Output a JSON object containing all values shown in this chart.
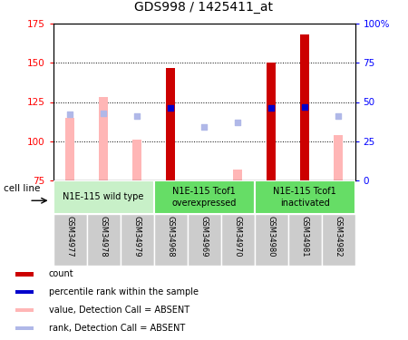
{
  "title": "GDS998 / 1425411_at",
  "samples": [
    "GSM34977",
    "GSM34978",
    "GSM34979",
    "GSM34968",
    "GSM34969",
    "GSM34970",
    "GSM34980",
    "GSM34981",
    "GSM34982"
  ],
  "count_values": [
    null,
    null,
    null,
    147,
    null,
    null,
    150,
    168,
    null
  ],
  "count_color": "#cc0000",
  "value_absent": [
    115,
    128,
    101,
    null,
    null,
    82,
    null,
    null,
    104
  ],
  "value_absent_color": "#ffb6b6",
  "rank_absent": [
    117,
    118,
    116,
    null,
    109,
    112,
    null,
    null,
    116
  ],
  "rank_absent_color": "#b0b8e8",
  "percentile_present": [
    null,
    null,
    null,
    121,
    null,
    null,
    121,
    122,
    null
  ],
  "percentile_color": "#0000cc",
  "ylim_left": [
    75,
    175
  ],
  "ylim_right": [
    0,
    100
  ],
  "yticks_left": [
    75,
    100,
    125,
    150,
    175
  ],
  "yticks_right": [
    0,
    25,
    50,
    75,
    100
  ],
  "ytick_labels_left": [
    "75",
    "100",
    "125",
    "150",
    "175"
  ],
  "ytick_labels_right": [
    "0",
    "25",
    "50",
    "75",
    "100%"
  ],
  "group_configs": [
    {
      "start": 0,
      "end": 2,
      "color": "#c8f0c8",
      "label": "N1E-115 wild type"
    },
    {
      "start": 3,
      "end": 5,
      "color": "#66dd66",
      "label": "N1E-115 Tcof1\noverexpressed"
    },
    {
      "start": 6,
      "end": 8,
      "color": "#66dd66",
      "label": "N1E-115 Tcof1\ninactivated"
    }
  ],
  "legend_items": [
    {
      "color": "#cc0000",
      "label": "count"
    },
    {
      "color": "#0000cc",
      "label": "percentile rank within the sample"
    },
    {
      "color": "#ffb6b6",
      "label": "value, Detection Call = ABSENT"
    },
    {
      "color": "#b0b8e8",
      "label": "rank, Detection Call = ABSENT"
    }
  ],
  "cell_line_label": "cell line",
  "label_area_color": "#cccccc",
  "plot_bg_color": "#ffffff",
  "bar_width": 0.25
}
